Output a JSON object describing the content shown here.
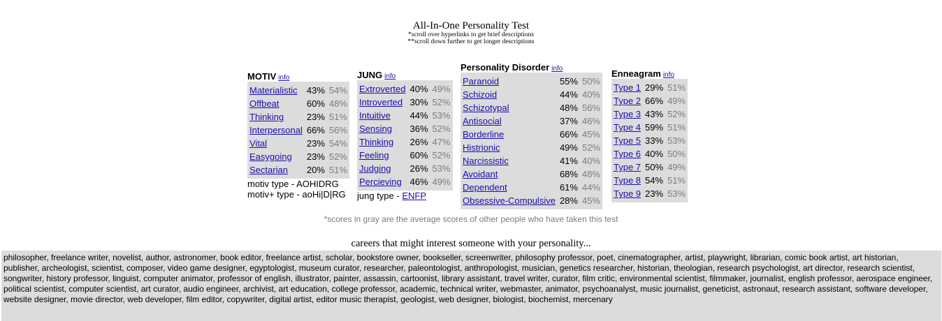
{
  "header": {
    "title": "All-In-One Personality Test",
    "note1": "*scroll over hyperlinks to get brief descriptions",
    "note2": "**scroll down further to get longer descriptions"
  },
  "info_label": "info",
  "motiv": {
    "heading": "MOTIV",
    "rows": [
      {
        "name": "Materialistic",
        "score": "43%",
        "avg": "54%"
      },
      {
        "name": "Offbeat",
        "score": "60%",
        "avg": "48%"
      },
      {
        "name": "Thinking",
        "score": "23%",
        "avg": "51%"
      },
      {
        "name": "Interpersonal",
        "score": "66%",
        "avg": "56%"
      },
      {
        "name": "Vital",
        "score": "23%",
        "avg": "54%"
      },
      {
        "name": "Easygoing",
        "score": "23%",
        "avg": "52%"
      },
      {
        "name": "Sectarian",
        "score": "20%",
        "avg": "51%"
      }
    ],
    "type_line": "motiv type - AOHIDRG",
    "plus_line": "motiv+ type - aoHi|D|RG"
  },
  "jung": {
    "heading": "JUNG",
    "rows": [
      {
        "name": "Extroverted",
        "score": "40%",
        "avg": "49%"
      },
      {
        "name": "Introverted",
        "score": "30%",
        "avg": "52%"
      },
      {
        "name": "Intuitive",
        "score": "44%",
        "avg": "53%"
      },
      {
        "name": "Sensing",
        "score": "36%",
        "avg": "52%"
      },
      {
        "name": "Thinking",
        "score": "26%",
        "avg": "47%"
      },
      {
        "name": "Feeling",
        "score": "60%",
        "avg": "52%"
      },
      {
        "name": "Judging",
        "score": "26%",
        "avg": "53%"
      },
      {
        "name": "Percieving",
        "score": "46%",
        "avg": "49%"
      }
    ],
    "type_prefix": "jung type - ",
    "type_value": "ENFP"
  },
  "disorder": {
    "heading": "Personality Disorder",
    "rows": [
      {
        "name": "Paranoid",
        "score": "55%",
        "avg": "50%"
      },
      {
        "name": "Schizoid",
        "score": "44%",
        "avg": "40%"
      },
      {
        "name": "Schizotypal",
        "score": "48%",
        "avg": "56%"
      },
      {
        "name": "Antisocial",
        "score": "37%",
        "avg": "46%"
      },
      {
        "name": "Borderline",
        "score": "66%",
        "avg": "45%"
      },
      {
        "name": "Histrionic",
        "score": "49%",
        "avg": "52%"
      },
      {
        "name": "Narcissistic",
        "score": "41%",
        "avg": "40%"
      },
      {
        "name": "Avoidant",
        "score": "68%",
        "avg": "48%"
      },
      {
        "name": "Dependent",
        "score": "61%",
        "avg": "44%"
      },
      {
        "name": "Obsessive-Compulsive",
        "score": "28%",
        "avg": "45%"
      }
    ]
  },
  "enneagram": {
    "heading": "Enneagram",
    "rows": [
      {
        "name": "Type 1",
        "score": "29%",
        "avg": "51%"
      },
      {
        "name": "Type 2",
        "score": "66%",
        "avg": "49%"
      },
      {
        "name": "Type 3",
        "score": "43%",
        "avg": "52%"
      },
      {
        "name": "Type 4",
        "score": "59%",
        "avg": "51%"
      },
      {
        "name": "Type 5",
        "score": "33%",
        "avg": "53%"
      },
      {
        "name": "Type 6",
        "score": "40%",
        "avg": "50%"
      },
      {
        "name": "Type 7",
        "score": "50%",
        "avg": "49%"
      },
      {
        "name": "Type 8",
        "score": "54%",
        "avg": "51%"
      },
      {
        "name": "Type 9",
        "score": "23%",
        "avg": "53%"
      }
    ]
  },
  "gray_note": "*scores in gray are the average scores of other people who have taken this test",
  "careers": {
    "title": "careers that might interest someone with your personality...",
    "text": "philosopher, freelance writer, novelist, author, astronomer, book editor, freelance artist, scholar, bookstore owner, bookseller, screenwriter, philosophy professor, poet, cinematographer, artist, playwright, librarian, comic book artist, art historian, publisher, archeologist, scientist, composer, video game designer, egyptologist, museum curator, researcher, paleontologist, anthropologist, musician, genetics researcher, historian, theologian, research psychologist, art director, research scientist, songwriter, history professor, linguist, computer animator, professor of english, illustrator, painter, assassin, cartoonist, library assistant, travel writer, curator, film critic, environmental scientist, filmmaker, journalist, english professor, aerospace engineer, political scientist, computer scientist, art curator, audio engineer, archivist, art education, college professor, academic, technical writer, webmaster, animator, psychoanalyst, music journalist, geneticist, astronaut, research assistant, software developer, website designer, movie director, web developer, film editor, copywriter, digital artist, editor music therapist, geologist, web designer, biologist, biochemist, mercenary"
  }
}
